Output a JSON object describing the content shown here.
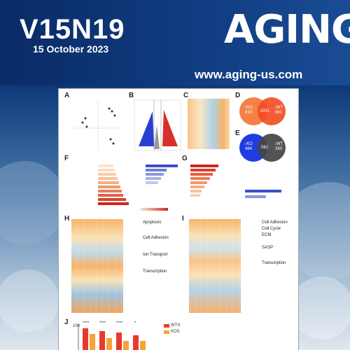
{
  "cover": {
    "issue": "V15N19",
    "date": "15 October 2023",
    "journal": "AGING",
    "url": "www.aging-us.com"
  },
  "panels": {
    "labels": [
      "A",
      "B",
      "C",
      "D",
      "E",
      "F",
      "G",
      "H",
      "I",
      "J"
    ],
    "venn_top": {
      "left_text": "↑KO\n610",
      "center": "1031",
      "right_text": "↑WT\n561"
    },
    "venn_bottom": {
      "left_text": "↓KO\n484",
      "center": "562",
      "right_text": "↓WT\n260"
    },
    "h_annotations": [
      "Apoptosis",
      "Cell Adhesion",
      "Ion Transport",
      "Transcription"
    ],
    "i_annotations": [
      "Cell Adhesion",
      "Cell Cycle",
      "ECM",
      "SASP",
      "Transcription"
    ],
    "j_legend": [
      "WTS",
      "KOS"
    ],
    "j_stars": [
      "****",
      "****",
      "****",
      "*"
    ],
    "j_ytick": "100"
  },
  "colors": {
    "brand_dark": "#0a2b66",
    "venn_orange": "#ef6a2a",
    "venn_blue": "#1f3fd6",
    "venn_dark": "#444444",
    "red_bar": "#e53c2a",
    "orange_bar": "#f6a33a"
  }
}
